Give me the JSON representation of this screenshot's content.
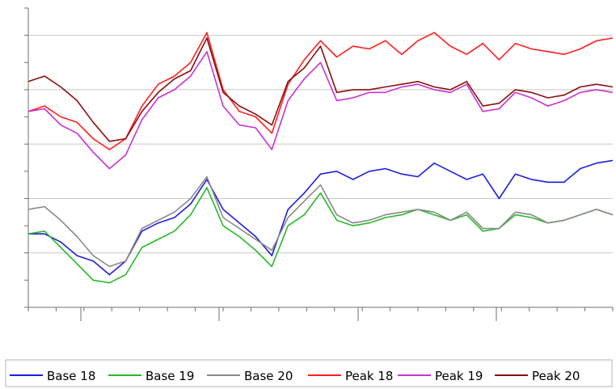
{
  "chart_data": {
    "type": "line",
    "title": "",
    "xlabel": "",
    "ylabel": "",
    "grid": "horizontal",
    "legend_position": "bottom",
    "ylim": [
      0,
      7
    ],
    "x": [
      1,
      21,
      41,
      61,
      81,
      101,
      121,
      141,
      161,
      181,
      201,
      221,
      241,
      261,
      281,
      301,
      321,
      341,
      361,
      381,
      401,
      421,
      441,
      461,
      481,
      501,
      521,
      541,
      561,
      581,
      601,
      621,
      641,
      661,
      681,
      701,
      721
    ],
    "xlim": [
      1,
      721
    ],
    "series": [
      {
        "name": "Base 18",
        "color": "#1f1fdf",
        "values": [
          0.85,
          0.85,
          0.7,
          0.45,
          0.35,
          0.1,
          0.35,
          0.9,
          1.05,
          1.15,
          1.4,
          1.85,
          1.3,
          1.05,
          0.8,
          0.45,
          1.3,
          1.6,
          1.95,
          2.0,
          1.85,
          2.0,
          2.05,
          1.95,
          1.9,
          2.15,
          2.0,
          1.85,
          1.95,
          1.5,
          1.95,
          1.85,
          1.8,
          1.8,
          2.05,
          2.15,
          2.2
        ]
      },
      {
        "name": "Base 19",
        "color": "#2ab82a",
        "values": [
          0.85,
          0.9,
          0.6,
          0.3,
          0.0,
          -0.05,
          0.1,
          0.6,
          0.75,
          0.9,
          1.2,
          1.7,
          1.0,
          0.8,
          0.55,
          0.25,
          1.0,
          1.2,
          1.6,
          1.1,
          1.0,
          1.05,
          1.15,
          1.2,
          1.3,
          1.2,
          1.1,
          1.2,
          0.9,
          0.95,
          1.2,
          1.15,
          1.05,
          1.1,
          1.2,
          1.3,
          1.2
        ]
      },
      {
        "name": "Base 20",
        "color": "#8a8a8a",
        "values": [
          1.3,
          1.35,
          1.1,
          0.8,
          0.45,
          0.25,
          0.35,
          0.95,
          1.1,
          1.25,
          1.5,
          1.9,
          1.15,
          0.95,
          0.75,
          0.55,
          1.15,
          1.45,
          1.75,
          1.2,
          1.05,
          1.1,
          1.2,
          1.25,
          1.3,
          1.25,
          1.1,
          1.25,
          0.95,
          0.95,
          1.25,
          1.2,
          1.05,
          1.1,
          1.2,
          1.3,
          1.2
        ]
      },
      {
        "name": "Peak 18",
        "color": "#ff1f1f",
        "values": [
          3.1,
          3.2,
          3.0,
          2.9,
          2.6,
          2.4,
          2.6,
          3.2,
          3.6,
          3.75,
          4.0,
          4.55,
          3.5,
          3.1,
          3.0,
          2.7,
          3.6,
          4.05,
          4.4,
          4.1,
          4.3,
          4.25,
          4.4,
          4.15,
          4.4,
          4.55,
          4.3,
          4.15,
          4.35,
          4.05,
          4.35,
          4.25,
          4.2,
          4.15,
          4.25,
          4.4,
          4.45
        ]
      },
      {
        "name": "Peak 19",
        "color": "#c832d2",
        "values": [
          3.1,
          3.15,
          2.85,
          2.7,
          2.35,
          2.05,
          2.3,
          2.95,
          3.35,
          3.5,
          3.75,
          4.2,
          3.2,
          2.85,
          2.8,
          2.4,
          3.3,
          3.7,
          4.0,
          3.3,
          3.35,
          3.45,
          3.45,
          3.55,
          3.6,
          3.5,
          3.45,
          3.6,
          3.1,
          3.15,
          3.45,
          3.35,
          3.2,
          3.3,
          3.45,
          3.5,
          3.45
        ]
      },
      {
        "name": "Peak 20",
        "color": "#8b1010",
        "values": [
          3.65,
          3.75,
          3.55,
          3.3,
          2.9,
          2.55,
          2.6,
          3.1,
          3.45,
          3.7,
          3.85,
          4.45,
          3.45,
          3.2,
          3.05,
          2.85,
          3.65,
          3.9,
          4.3,
          3.45,
          3.5,
          3.5,
          3.55,
          3.6,
          3.65,
          3.55,
          3.5,
          3.65,
          3.2,
          3.25,
          3.5,
          3.45,
          3.35,
          3.4,
          3.55,
          3.6,
          3.55
        ]
      }
    ]
  }
}
